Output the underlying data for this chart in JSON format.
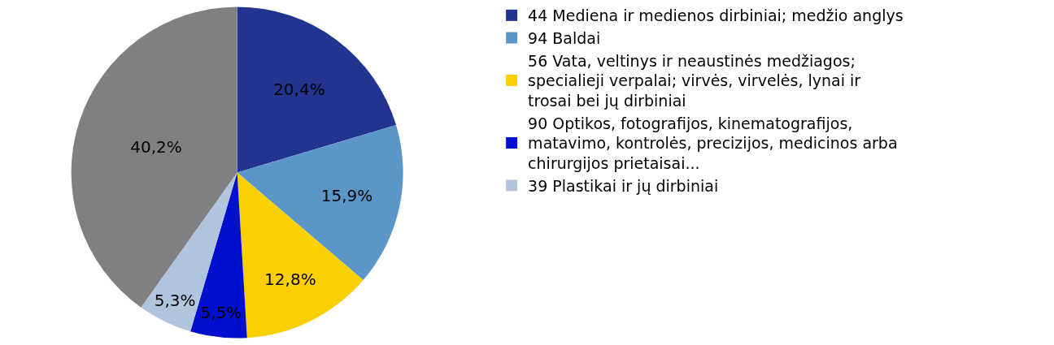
{
  "chart_data": {
    "type": "pie",
    "categories": [
      "44 Mediena ir medienos dirbiniai; medžio anglys",
      "94 Baldai",
      "56 Vata, veltinys ir neaustinės medžiagos; specialieji verpalai; virvės, virvelės, lynai ir trosai bei jų dirbiniai",
      "90 Optikos, fotografijos, kinematografijos, matavimo, kontrolės, precizijos, medicinos arba chirurgijos prietaisai...",
      "39 Plastikai ir jų dirbiniai",
      null
    ],
    "values": [
      20.4,
      15.9,
      12.8,
      5.5,
      5.3,
      40.2
    ],
    "value_labels": [
      "20,4%",
      "15,9%",
      "12,8%",
      "5,5%",
      "5,3%",
      "40,2%"
    ],
    "colors": [
      "#22348f",
      "#5b96c9",
      "#fad000",
      "#0010cc",
      "#b0c4de",
      "#808083"
    ],
    "legend": "right"
  }
}
